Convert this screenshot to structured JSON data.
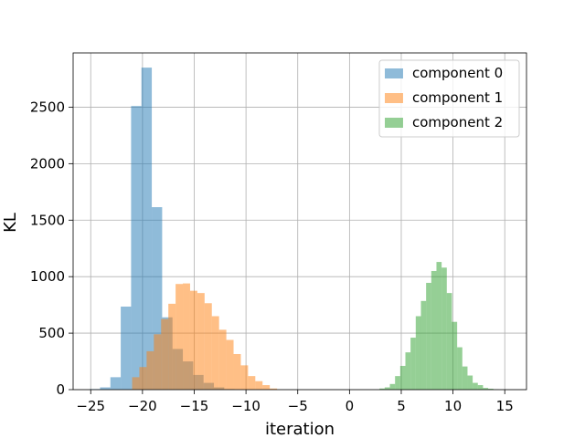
{
  "chart_data": {
    "type": "histogram",
    "xlabel": "iteration",
    "ylabel": "KL",
    "xlim": [
      -26.7,
      17.1
    ],
    "ylim": [
      0,
      2980
    ],
    "xticks": [
      -25,
      -20,
      -15,
      -10,
      -5,
      0,
      5,
      10,
      15
    ],
    "yticks": [
      0,
      500,
      1000,
      1500,
      2000,
      2500
    ],
    "grid": true,
    "legend_position": "top-right",
    "series": [
      {
        "name": "component 0",
        "color": "#1f77b4",
        "opacity": 0.5,
        "bin_width": 1.0,
        "bins": [
          {
            "x0": -25.1,
            "value": 5
          },
          {
            "x0": -24.1,
            "value": 20
          },
          {
            "x0": -23.1,
            "value": 110
          },
          {
            "x0": -22.1,
            "value": 735
          },
          {
            "x0": -21.1,
            "value": 2510
          },
          {
            "x0": -20.1,
            "value": 2850
          },
          {
            "x0": -19.1,
            "value": 1615
          },
          {
            "x0": -18.1,
            "value": 640
          },
          {
            "x0": -17.1,
            "value": 360
          },
          {
            "x0": -16.1,
            "value": 250
          },
          {
            "x0": -15.1,
            "value": 130
          },
          {
            "x0": -14.1,
            "value": 60
          },
          {
            "x0": -13.1,
            "value": 20
          },
          {
            "x0": -12.1,
            "value": 5
          }
        ]
      },
      {
        "name": "component 1",
        "color": "#ff7f0e",
        "opacity": 0.5,
        "bin_width": 0.7,
        "bins": [
          {
            "x0": -21.0,
            "value": 110
          },
          {
            "x0": -20.3,
            "value": 200
          },
          {
            "x0": -19.6,
            "value": 340
          },
          {
            "x0": -18.9,
            "value": 490
          },
          {
            "x0": -18.2,
            "value": 625
          },
          {
            "x0": -17.5,
            "value": 760
          },
          {
            "x0": -16.8,
            "value": 935
          },
          {
            "x0": -16.1,
            "value": 940
          },
          {
            "x0": -15.4,
            "value": 875
          },
          {
            "x0": -14.7,
            "value": 855
          },
          {
            "x0": -14.0,
            "value": 765
          },
          {
            "x0": -13.3,
            "value": 650
          },
          {
            "x0": -12.6,
            "value": 530
          },
          {
            "x0": -11.9,
            "value": 440
          },
          {
            "x0": -11.2,
            "value": 315
          },
          {
            "x0": -10.5,
            "value": 215
          },
          {
            "x0": -9.8,
            "value": 120
          },
          {
            "x0": -9.1,
            "value": 75
          },
          {
            "x0": -8.4,
            "value": 40
          },
          {
            "x0": -7.7,
            "value": 10
          }
        ]
      },
      {
        "name": "component 2",
        "color": "#2ca02c",
        "opacity": 0.5,
        "bin_width": 0.5,
        "bins": [
          {
            "x0": 2.9,
            "value": 10
          },
          {
            "x0": 3.4,
            "value": 20
          },
          {
            "x0": 3.9,
            "value": 50
          },
          {
            "x0": 4.4,
            "value": 120
          },
          {
            "x0": 4.9,
            "value": 210
          },
          {
            "x0": 5.4,
            "value": 330
          },
          {
            "x0": 5.9,
            "value": 460
          },
          {
            "x0": 6.4,
            "value": 650
          },
          {
            "x0": 6.9,
            "value": 785
          },
          {
            "x0": 7.4,
            "value": 945
          },
          {
            "x0": 7.9,
            "value": 1050
          },
          {
            "x0": 8.4,
            "value": 1130
          },
          {
            "x0": 8.9,
            "value": 1080
          },
          {
            "x0": 9.4,
            "value": 855
          },
          {
            "x0": 9.9,
            "value": 600
          },
          {
            "x0": 10.4,
            "value": 375
          },
          {
            "x0": 10.9,
            "value": 205
          },
          {
            "x0": 11.4,
            "value": 125
          },
          {
            "x0": 11.9,
            "value": 60
          },
          {
            "x0": 12.4,
            "value": 40
          },
          {
            "x0": 12.9,
            "value": 15
          },
          {
            "x0": 13.4,
            "value": 8
          },
          {
            "x0": 13.9,
            "value": 3
          }
        ]
      }
    ]
  }
}
